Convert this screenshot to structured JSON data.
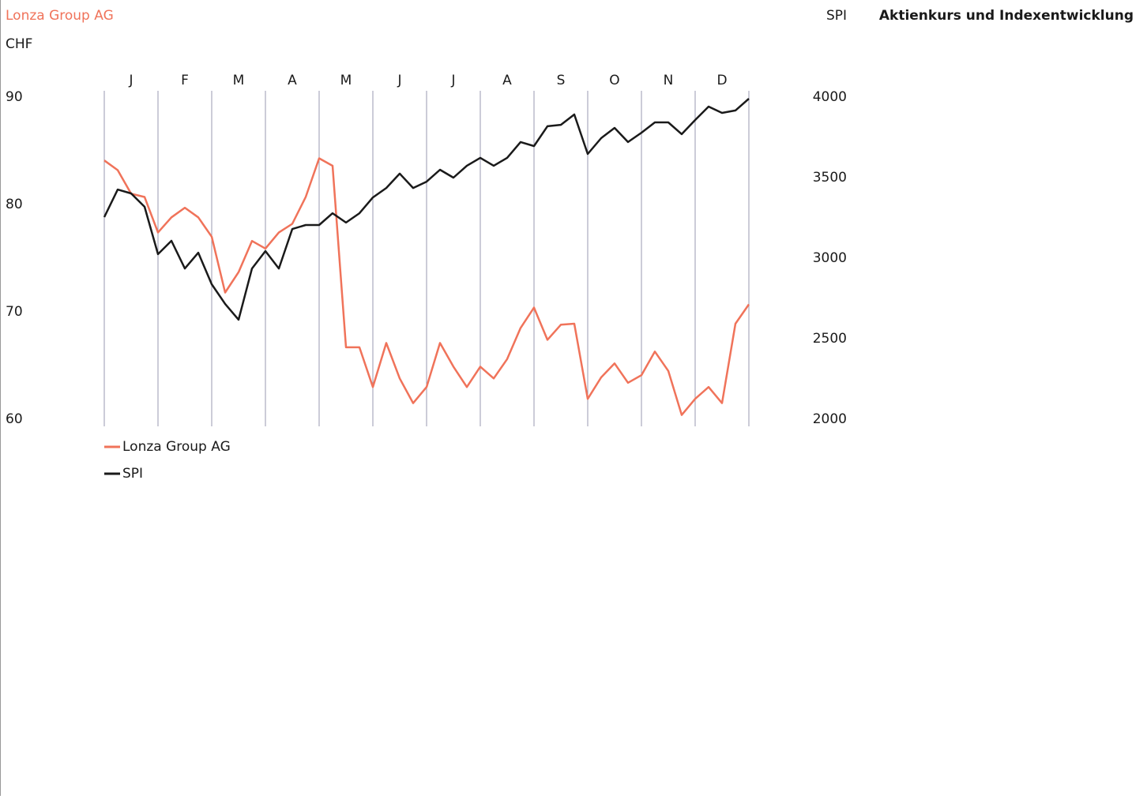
{
  "chart_data": {
    "type": "line",
    "title": "Aktienkurs und Indexentwicklung",
    "y_label": "Lonza Group AG",
    "y_unit": "CHF",
    "y2_label": "SPI",
    "x": [
      0,
      0.25,
      0.5,
      0.75,
      1,
      1.25,
      1.5,
      1.75,
      2,
      2.25,
      2.5,
      2.75,
      3,
      3.25,
      3.5,
      3.75,
      4,
      4.25,
      4.5,
      4.75,
      5,
      5.25,
      5.5,
      5.75,
      6,
      6.25,
      6.5,
      6.75,
      7,
      7.25,
      7.5,
      7.75,
      8,
      8.25,
      8.5,
      8.75,
      9,
      9.25,
      9.5,
      9.75,
      10,
      10.25,
      10.5,
      10.75,
      11,
      11.25,
      11.5,
      11.75,
      12
    ],
    "xlim": [
      0,
      12
    ],
    "xticks": [
      {
        "value": 0.5,
        "label": "J"
      },
      {
        "value": 1.5,
        "label": "F"
      },
      {
        "value": 2.5,
        "label": "M"
      },
      {
        "value": 3.5,
        "label": "A"
      },
      {
        "value": 4.5,
        "label": "M"
      },
      {
        "value": 5.5,
        "label": "J"
      },
      {
        "value": 6.5,
        "label": "J"
      },
      {
        "value": 7.5,
        "label": "A"
      },
      {
        "value": 8.5,
        "label": "S"
      },
      {
        "value": 9.5,
        "label": "O"
      },
      {
        "value": 10.5,
        "label": "N"
      },
      {
        "value": 11.5,
        "label": "D"
      }
    ],
    "ylim": [
      60,
      90
    ],
    "yticks": [
      60,
      70,
      80,
      90
    ],
    "y2lim": [
      2000,
      4000
    ],
    "y2ticks": [
      2000,
      2500,
      3000,
      3500,
      4000
    ],
    "series": [
      {
        "name": "Lonza Group AG",
        "color": "#f0735a",
        "values": [
          84.1,
          83.2,
          81.0,
          80.7,
          77.4,
          78.8,
          79.7,
          78.8,
          77.0,
          71.8,
          73.7,
          76.6,
          75.9,
          77.4,
          78.2,
          80.7,
          84.3,
          83.6,
          66.7,
          66.7,
          63.0,
          67.1,
          63.8,
          61.5,
          63.0,
          67.1,
          64.9,
          63.0,
          64.9,
          63.8,
          65.6,
          68.5,
          70.4,
          67.4,
          68.8,
          68.9,
          61.9,
          63.9,
          65.2,
          63.4,
          64.1,
          66.3,
          64.5,
          60.4,
          61.9,
          63.0,
          61.5,
          68.9,
          70.7
        ]
      },
      {
        "name": "SPI",
        "color": "#1a1a1a",
        "axis": "y2",
        "values": [
          3255,
          3426,
          3402,
          3319,
          3025,
          3108,
          2936,
          3034,
          2838,
          2716,
          2618,
          2936,
          3044,
          2936,
          3181,
          3206,
          3206,
          3279,
          3221,
          3279,
          3377,
          3436,
          3525,
          3436,
          3475,
          3549,
          3500,
          3574,
          3623,
          3574,
          3623,
          3721,
          3696,
          3819,
          3828,
          3892,
          3647,
          3745,
          3809,
          3721,
          3779,
          3843,
          3843,
          3770,
          3858,
          3941,
          3902,
          3917,
          3990
        ]
      }
    ]
  }
}
